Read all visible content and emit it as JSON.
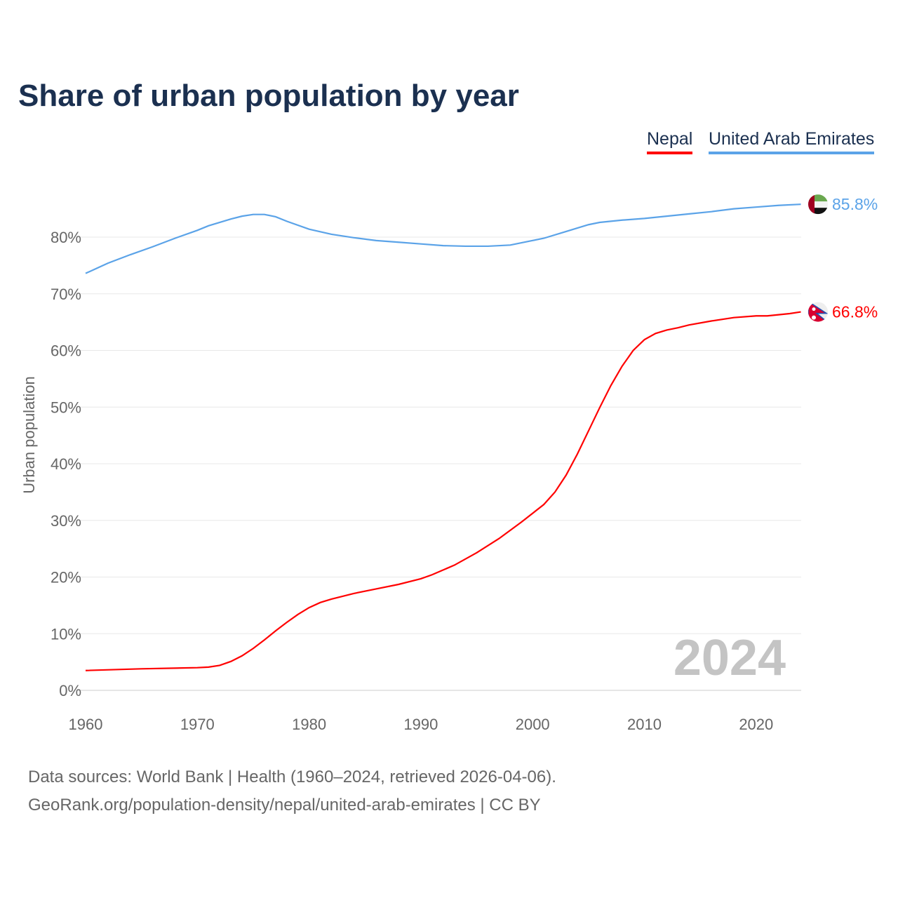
{
  "chart_data": {
    "type": "line",
    "title": "Share of urban population by year",
    "ylabel": "Urban population",
    "xlabel": "",
    "xlim": [
      1960,
      2024
    ],
    "ylim": [
      0,
      90
    ],
    "x_ticks": [
      1960,
      1970,
      1980,
      1990,
      2000,
      2010,
      2020
    ],
    "y_ticks": [
      0,
      10,
      20,
      30,
      40,
      50,
      60,
      70,
      80
    ],
    "y_tick_labels": [
      "0%",
      "10%",
      "20%",
      "30%",
      "40%",
      "50%",
      "60%",
      "70%",
      "80%"
    ],
    "grid": true,
    "legend_position": "top-right",
    "year_watermark": "2024",
    "series": [
      {
        "name": "Nepal",
        "color": "#ff0000",
        "end_label": "66.8%",
        "flag": "nepal-flag",
        "x": [
          1960,
          1965,
          1970,
          1971,
          1972,
          1973,
          1974,
          1975,
          1976,
          1977,
          1978,
          1979,
          1980,
          1981,
          1982,
          1984,
          1986,
          1988,
          1990,
          1991,
          1993,
          1995,
          1997,
          1999,
          2001,
          2002,
          2003,
          2004,
          2005,
          2006,
          2007,
          2008,
          2009,
          2010,
          2011,
          2012,
          2013,
          2014,
          2016,
          2018,
          2020,
          2021,
          2022,
          2023,
          2024
        ],
        "y": [
          3.5,
          3.8,
          4.0,
          4.1,
          4.4,
          5.1,
          6.1,
          7.4,
          8.9,
          10.5,
          12.0,
          13.4,
          14.6,
          15.5,
          16.1,
          17.1,
          17.9,
          18.7,
          19.7,
          20.4,
          22.1,
          24.3,
          26.8,
          29.7,
          32.8,
          35.0,
          38.0,
          41.7,
          45.8,
          49.9,
          53.8,
          57.2,
          60.0,
          61.9,
          63.0,
          63.6,
          64.0,
          64.5,
          65.2,
          65.8,
          66.1,
          66.1,
          66.3,
          66.5,
          66.8
        ]
      },
      {
        "name": "United Arab Emirates",
        "color": "#5ba3e8",
        "end_label": "85.8%",
        "flag": "uae-flag",
        "x": [
          1960,
          1962,
          1964,
          1966,
          1968,
          1970,
          1971,
          1973,
          1974,
          1975,
          1976,
          1977,
          1978,
          1980,
          1982,
          1984,
          1986,
          1988,
          1990,
          1992,
          1994,
          1996,
          1998,
          2000,
          2001,
          2003,
          2005,
          2006,
          2008,
          2010,
          2012,
          2014,
          2016,
          2018,
          2020,
          2022,
          2024
        ],
        "y": [
          73.6,
          75.4,
          76.9,
          78.3,
          79.8,
          81.2,
          82.0,
          83.2,
          83.7,
          84.0,
          84.0,
          83.6,
          82.8,
          81.4,
          80.5,
          79.9,
          79.4,
          79.1,
          78.8,
          78.5,
          78.4,
          78.4,
          78.6,
          79.4,
          79.8,
          81.0,
          82.2,
          82.6,
          83.0,
          83.3,
          83.7,
          84.1,
          84.5,
          85.0,
          85.3,
          85.6,
          85.8
        ]
      }
    ]
  },
  "source": {
    "line1": "Data sources: World Bank | Health (1960–2024, retrieved 2026-04-06).",
    "line2": "GeoRank.org/population-density/nepal/united-arab-emirates | CC BY"
  }
}
